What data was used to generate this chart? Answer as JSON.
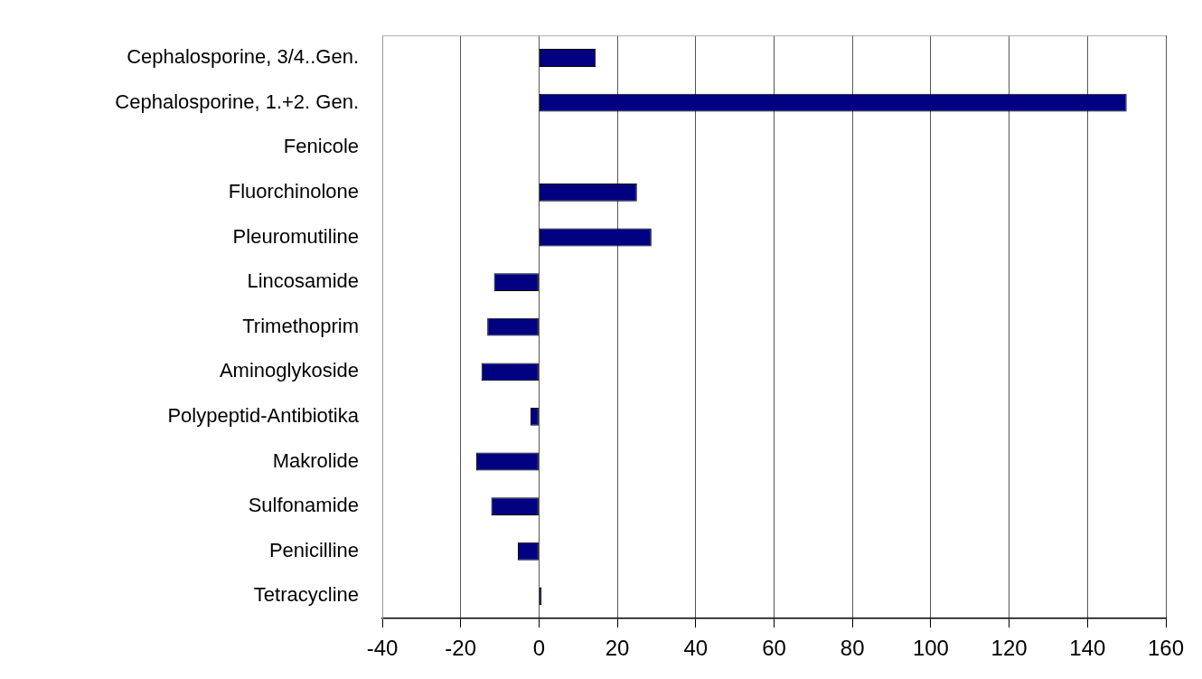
{
  "chart_data": {
    "type": "bar",
    "orientation": "horizontal",
    "categories": [
      "Cephalosporine, 3/4..Gen.",
      "Cephalosporine, 1.+2. Gen.",
      "Fenicole",
      "Fluorchinolone",
      "Pleuromutiline",
      "Lincosamide",
      "Trimethoprim",
      "Aminoglykoside",
      "Polypeptid-Antibiotika",
      "Makrolide",
      "Sulfonamide",
      "Penicilline",
      "Tetracycline"
    ],
    "values": [
      14.5,
      150,
      0,
      25,
      28.7,
      -11.5,
      -13.2,
      -14.7,
      -2.2,
      -16,
      -12.2,
      -5.4,
      0.7
    ],
    "color": "#000080",
    "xlim": [
      -40,
      160
    ],
    "xticks": [
      -40,
      -20,
      0,
      20,
      40,
      60,
      80,
      100,
      120,
      140,
      160
    ],
    "grid": "x",
    "legend": false
  }
}
